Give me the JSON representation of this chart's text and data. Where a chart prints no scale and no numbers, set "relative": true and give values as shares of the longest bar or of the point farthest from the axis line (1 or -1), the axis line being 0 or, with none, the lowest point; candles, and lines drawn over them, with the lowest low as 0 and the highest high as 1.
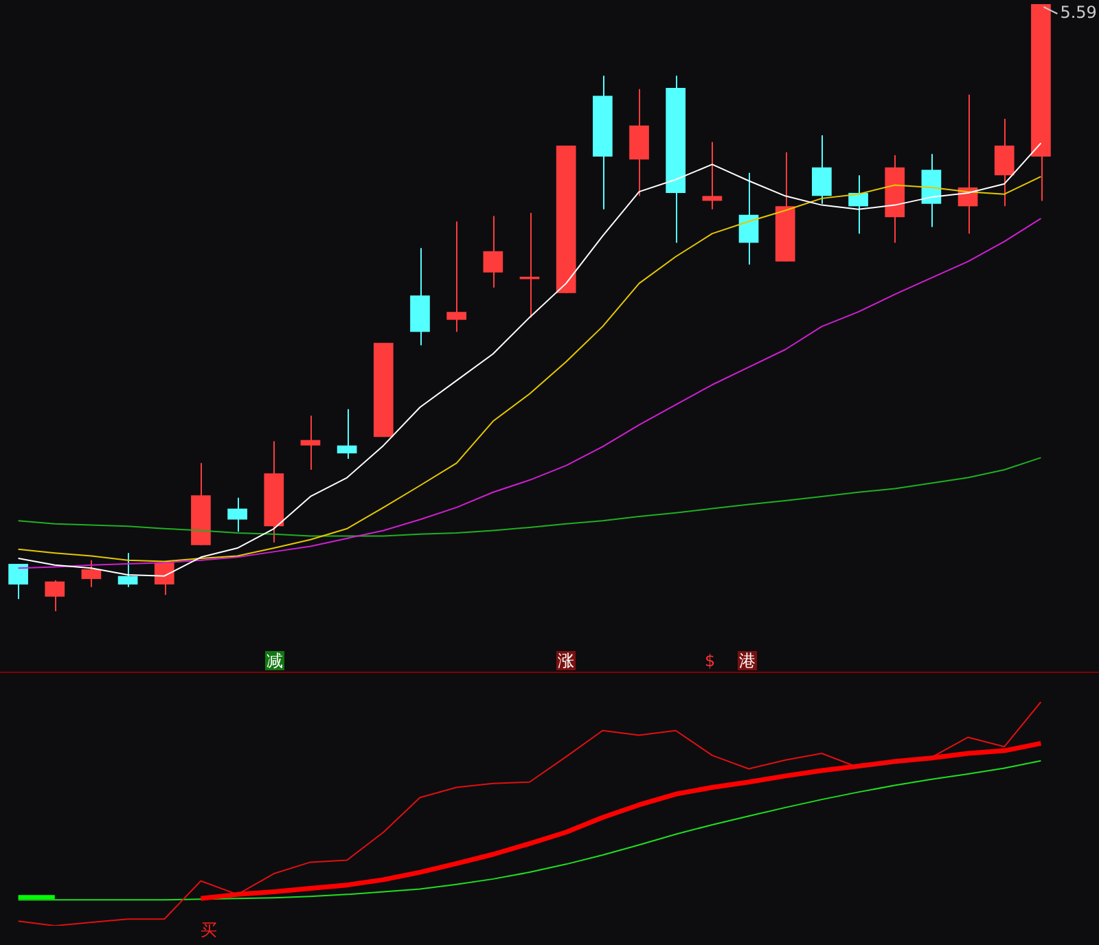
{
  "chart_data": [
    {
      "type": "candlestick",
      "relative": true,
      "legend": false,
      "tick_labels": false,
      "categories": [
        null,
        null,
        null,
        null,
        null,
        null,
        null,
        null,
        null,
        null,
        null,
        null,
        null,
        null,
        null,
        null,
        null,
        null,
        null,
        null,
        null,
        null,
        null,
        null,
        null,
        null,
        null,
        null,
        null
      ],
      "ohlc": [
        [
          0.078,
          0.078,
          0.02,
          0.044
        ],
        [
          0.024,
          0.051,
          0,
          0.049
        ],
        [
          0.053,
          0.084,
          0.04,
          0.069
        ],
        [
          0.058,
          0.096,
          0.04,
          0.044
        ],
        [
          0.044,
          0.08,
          0.027,
          0.08
        ],
        [
          0.109,
          0.244,
          0.109,
          0.191
        ],
        [
          0.169,
          0.187,
          0.131,
          0.151
        ],
        [
          0.14,
          0.28,
          0.113,
          0.227
        ],
        [
          0.273,
          0.322,
          0.233,
          0.282
        ],
        [
          0.273,
          0.333,
          0.251,
          0.26
        ],
        [
          0.287,
          0.442,
          0.287,
          0.442
        ],
        [
          0.52,
          0.598,
          0.438,
          0.46
        ],
        [
          0.48,
          0.642,
          0.46,
          0.493
        ],
        [
          0.558,
          0.651,
          0.533,
          0.593
        ],
        [
          0.547,
          0.656,
          0.484,
          0.551
        ],
        [
          0.524,
          0.767,
          0.524,
          0.767
        ],
        [
          0.849,
          0.882,
          0.662,
          0.749
        ],
        [
          0.744,
          0.86,
          0.684,
          0.8
        ],
        [
          0.862,
          0.882,
          0.607,
          0.689
        ],
        [
          0.676,
          0.773,
          0.662,
          0.684
        ],
        [
          0.653,
          0.722,
          0.571,
          0.607
        ],
        [
          0.576,
          0.756,
          0.576,
          0.667
        ],
        [
          0.731,
          0.784,
          0.671,
          0.684
        ],
        [
          0.689,
          0.718,
          0.622,
          0.667
        ],
        [
          0.649,
          0.751,
          0.607,
          0.731
        ],
        [
          0.727,
          0.753,
          0.633,
          0.671
        ],
        [
          0.667,
          0.851,
          0.622,
          0.698
        ],
        [
          0.718,
          0.811,
          0.667,
          0.767
        ],
        [
          0.749,
          1,
          0.676,
          1
        ]
      ],
      "series": [
        {
          "type": "line",
          "color": "#ffffff",
          "values": [
            0.087,
            0.076,
            0.071,
            0.06,
            0.058,
            0.089,
            0.104,
            0.136,
            0.189,
            0.22,
            0.273,
            0.336,
            0.38,
            0.424,
            0.484,
            0.54,
            0.618,
            0.691,
            0.711,
            0.736,
            0.709,
            0.684,
            0.669,
            0.662,
            0.669,
            0.682,
            0.689,
            0.704,
            0.771
          ]
        },
        {
          "type": "line",
          "color": "#e6c800",
          "values": [
            0.102,
            0.096,
            0.091,
            0.084,
            0.082,
            0.087,
            0.091,
            0.104,
            0.118,
            0.136,
            0.171,
            0.207,
            0.244,
            0.313,
            0.358,
            0.411,
            0.469,
            0.54,
            0.584,
            0.622,
            0.642,
            0.66,
            0.68,
            0.687,
            0.702,
            0.698,
            0.691,
            0.687,
            0.716
          ]
        },
        {
          "type": "line",
          "color": "#d020d0",
          "values": [
            0.071,
            0.073,
            0.076,
            0.078,
            0.08,
            0.084,
            0.089,
            0.098,
            0.107,
            0.12,
            0.133,
            0.151,
            0.171,
            0.196,
            0.216,
            0.24,
            0.271,
            0.307,
            0.34,
            0.373,
            0.402,
            0.431,
            0.469,
            0.493,
            0.522,
            0.549,
            0.576,
            0.609,
            0.647
          ]
        },
        {
          "type": "line",
          "color": "#20b020",
          "values": [
            0.149,
            0.144,
            0.142,
            0.14,
            0.136,
            0.133,
            0.129,
            0.127,
            0.124,
            0.124,
            0.124,
            0.127,
            0.129,
            0.133,
            0.138,
            0.144,
            0.149,
            0.156,
            0.162,
            0.169,
            0.176,
            0.182,
            0.189,
            0.196,
            0.202,
            0.211,
            0.22,
            0.233,
            0.253
          ]
        }
      ],
      "annotations": [
        "5.59"
      ]
    },
    {
      "type": "line",
      "relative": true,
      "legend": false,
      "tick_labels": false,
      "marker": "none",
      "categories": [
        null,
        null,
        null,
        null,
        null,
        null,
        null,
        null,
        null,
        null,
        null,
        null,
        null,
        null,
        null,
        null,
        null,
        null,
        null,
        null,
        null,
        null,
        null,
        null,
        null,
        null,
        null,
        null,
        null
      ],
      "series": [
        {
          "color": "#e01010",
          "values": [
            0.021,
            0,
            0.015,
            0.03,
            0.03,
            0.2,
            0.14,
            0.233,
            0.284,
            0.293,
            0.418,
            0.573,
            0.618,
            0.636,
            0.642,
            0.755,
            0.872,
            0.851,
            0.872,
            0.761,
            0.701,
            0.74,
            0.77,
            0.707,
            0.731,
            0.752,
            0.842,
            0.8,
            1
          ]
        },
        {
          "color": "#ff0000",
          "values": [
            null,
            null,
            null,
            null,
            null,
            0.122,
            0.14,
            0.152,
            0.167,
            0.182,
            0.206,
            0.239,
            0.278,
            0.319,
            0.367,
            0.418,
            0.484,
            0.54,
            0.588,
            0.618,
            0.642,
            0.669,
            0.693,
            0.713,
            0.734,
            0.749,
            0.77,
            0.782,
            0.815
          ]
        },
        {
          "color": "#20e020",
          "values": [
            0.116,
            0.116,
            0.116,
            0.116,
            0.116,
            0.119,
            0.122,
            0.125,
            0.131,
            0.14,
            0.152,
            0.164,
            0.185,
            0.209,
            0.239,
            0.275,
            0.316,
            0.361,
            0.409,
            0.451,
            0.49,
            0.528,
            0.564,
            0.597,
            0.627,
            0.654,
            0.678,
            0.704,
            0.737
          ]
        },
        {
          "color": "#00ff00",
          "values": [
            0.128,
            0.128,
            null,
            null,
            null,
            null,
            null,
            null,
            null,
            null,
            null,
            null,
            null,
            null,
            null,
            null,
            null,
            null,
            null,
            null,
            null,
            null,
            null,
            null,
            null,
            null,
            null,
            null,
            null
          ]
        }
      ],
      "annotations": [
        "减",
        "涨",
        "$",
        "港",
        "买"
      ]
    }
  ]
}
